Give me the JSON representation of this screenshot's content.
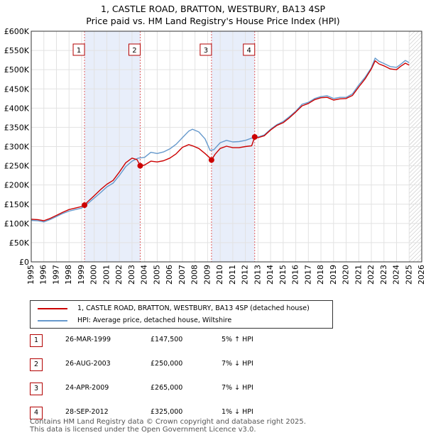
{
  "title_line1": "1, CASTLE ROAD, BRATTON, WESTBURY, BA13 4SP",
  "title_line2": "Price paid vs. HM Land Registry's House Price Index (HPI)",
  "colors": {
    "property": "#cc0000",
    "hpi": "#6699cc",
    "band": "#e8eefa",
    "marker": "#cc0000"
  },
  "legend": {
    "property": "1, CASTLE ROAD, BRATTON, WESTBURY, BA13 4SP (detached house)",
    "hpi": "HPI: Average price, detached house, Wiltshire"
  },
  "sales": [
    {
      "num": "1",
      "date": "26-MAR-1999",
      "price": "£147,500",
      "hpi": "5% ↑ HPI"
    },
    {
      "num": "2",
      "date": "26-AUG-2003",
      "price": "£250,000",
      "hpi": "7% ↓ HPI"
    },
    {
      "num": "3",
      "date": "24-APR-2009",
      "price": "£265,000",
      "hpi": "7% ↓ HPI"
    },
    {
      "num": "4",
      "date": "28-SEP-2012",
      "price": "£325,000",
      "hpi": "1% ↓ HPI"
    }
  ],
  "footer_line1": "Contains HM Land Registry data © Crown copyright and database right 2025.",
  "footer_line2": "This data is licensed under the Open Government Licence v3.0.",
  "chart_data": {
    "type": "line",
    "title": "1, CASTLE ROAD, BRATTON, WESTBURY, BA13 4SP",
    "subtitle": "Price paid vs. HM Land Registry's House Price Index (HPI)",
    "xlabel": "",
    "ylabel": "",
    "xlim": [
      1995,
      2026
    ],
    "ylim": [
      0,
      600000
    ],
    "x_ticks": [
      1995,
      1996,
      1997,
      1998,
      1999,
      2000,
      2001,
      2002,
      2003,
      2004,
      2005,
      2006,
      2007,
      2008,
      2009,
      2010,
      2011,
      2012,
      2013,
      2014,
      2015,
      2016,
      2017,
      2018,
      2019,
      2020,
      2021,
      2022,
      2023,
      2024,
      2025,
      2026
    ],
    "y_ticks": [
      0,
      50000,
      100000,
      150000,
      200000,
      250000,
      300000,
      350000,
      400000,
      450000,
      500000,
      550000,
      600000
    ],
    "y_tick_labels": [
      "£0",
      "£50K",
      "£100K",
      "£150K",
      "£200K",
      "£250K",
      "£300K",
      "£350K",
      "£400K",
      "£450K",
      "£500K",
      "£550K",
      "£600K"
    ],
    "grid": true,
    "shaded_bands": [
      [
        1999.23,
        2003.65
      ],
      [
        2009.31,
        2012.74
      ]
    ],
    "future_hatch_from": 2025.0,
    "sale_markers": [
      {
        "label": "1",
        "x": 1999.23,
        "y": 147500
      },
      {
        "label": "2",
        "x": 2003.65,
        "y": 250000
      },
      {
        "label": "3",
        "x": 2009.31,
        "y": 265000
      },
      {
        "label": "4",
        "x": 2012.74,
        "y": 325000
      }
    ],
    "series": [
      {
        "name": "HPI: Average price, detached house, Wiltshire",
        "x": [
          1995,
          1995.5,
          1996,
          1996.5,
          1997,
          1997.5,
          1998,
          1998.5,
          1999,
          1999.5,
          2000,
          2000.5,
          2001,
          2001.5,
          2002,
          2002.5,
          2003,
          2003.5,
          2004,
          2004.5,
          2005,
          2005.5,
          2006,
          2006.5,
          2007,
          2007.5,
          2007.8,
          2008.3,
          2008.8,
          2009.2,
          2009.5,
          2010,
          2010.5,
          2011,
          2011.5,
          2012,
          2012.5,
          2013,
          2013.5,
          2014,
          2014.5,
          2015,
          2015.5,
          2016,
          2016.5,
          2017,
          2017.5,
          2018,
          2018.5,
          2019,
          2019.5,
          2020,
          2020.5,
          2021,
          2021.5,
          2022,
          2022.3,
          2022.6,
          2023,
          2023.5,
          2024,
          2024.3,
          2024.7,
          2025
        ],
        "values": [
          108000,
          107000,
          104000,
          110000,
          118000,
          126000,
          132000,
          136000,
          140000,
          152000,
          166000,
          180000,
          195000,
          205000,
          225000,
          248000,
          262000,
          270000,
          272000,
          285000,
          282000,
          286000,
          294000,
          306000,
          323000,
          340000,
          345000,
          338000,
          320000,
          290000,
          292000,
          310000,
          316000,
          312000,
          313000,
          316000,
          322000,
          325000,
          330000,
          345000,
          357000,
          365000,
          378000,
          392000,
          410000,
          415000,
          425000,
          430000,
          432000,
          425000,
          428000,
          428000,
          437000,
          460000,
          480000,
          505000,
          530000,
          522000,
          516000,
          508000,
          506000,
          513000,
          524000,
          518000
        ]
      },
      {
        "name": "1, CASTLE ROAD, BRATTON, WESTBURY, BA13 4SP (detached house)",
        "x": [
          1995,
          1995.5,
          1996,
          1996.5,
          1997,
          1997.5,
          1998,
          1998.5,
          1999,
          1999.23,
          1999.5,
          2000,
          2000.5,
          2001,
          2001.5,
          2002,
          2002.5,
          2003,
          2003.4,
          2003.65,
          2004,
          2004.5,
          2005,
          2005.5,
          2006,
          2006.5,
          2007,
          2007.5,
          2007.8,
          2008.3,
          2008.8,
          2009.2,
          2009.31,
          2009.6,
          2010,
          2010.5,
          2011,
          2011.5,
          2012,
          2012.5,
          2012.74,
          2013,
          2013.5,
          2014,
          2014.5,
          2015,
          2015.5,
          2016,
          2016.5,
          2017,
          2017.5,
          2018,
          2018.5,
          2019,
          2019.5,
          2020,
          2020.5,
          2021,
          2021.5,
          2022,
          2022.3,
          2022.6,
          2023,
          2023.5,
          2024,
          2024.3,
          2024.7,
          2025
        ],
        "values": [
          111000,
          110000,
          107000,
          113000,
          121000,
          129000,
          136000,
          140000,
          144000,
          147500,
          157000,
          172000,
          188000,
          202000,
          212000,
          234000,
          258000,
          270000,
          266000,
          250000,
          252000,
          262000,
          260000,
          263000,
          270000,
          281000,
          298000,
          305000,
          302000,
          295000,
          282000,
          270000,
          265000,
          280000,
          295000,
          301000,
          297000,
          297000,
          300000,
          302000,
          325000,
          323000,
          328000,
          343000,
          355000,
          362000,
          375000,
          390000,
          406000,
          412000,
          422000,
          427000,
          428000,
          421000,
          424000,
          425000,
          433000,
          455000,
          476000,
          502000,
          523000,
          515000,
          510000,
          502000,
          500000,
          508000,
          517000,
          512000
        ]
      }
    ]
  }
}
